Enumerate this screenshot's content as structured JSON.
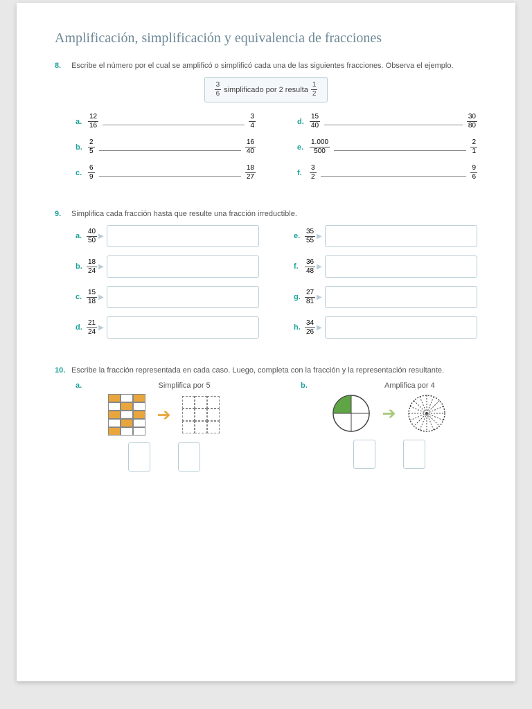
{
  "title": "Amplificación, simplificación y equivalencia de fracciones",
  "q8": {
    "num": "8.",
    "text": "Escribe el número por el cual se amplificó o simplificó cada una de las siguientes fracciones. Observa el ejemplo.",
    "example": {
      "f1": {
        "n": "3",
        "d": "6"
      },
      "mid": "simplificado por 2 resulta",
      "f2": {
        "n": "1",
        "d": "2"
      }
    },
    "left": [
      {
        "l": "a.",
        "f1": {
          "n": "12",
          "d": "16"
        },
        "f2": {
          "n": "3",
          "d": "4"
        }
      },
      {
        "l": "b.",
        "f1": {
          "n": "2",
          "d": "5"
        },
        "f2": {
          "n": "16",
          "d": "40"
        }
      },
      {
        "l": "c.",
        "f1": {
          "n": "6",
          "d": "9"
        },
        "f2": {
          "n": "18",
          "d": "27"
        }
      }
    ],
    "right": [
      {
        "l": "d.",
        "f1": {
          "n": "15",
          "d": "40"
        },
        "f2": {
          "n": "30",
          "d": "80"
        }
      },
      {
        "l": "e.",
        "f1": {
          "n": "1.000",
          "d": "500"
        },
        "f2": {
          "n": "2",
          "d": "1"
        }
      },
      {
        "l": "f.",
        "f1": {
          "n": "3",
          "d": "2"
        },
        "f2": {
          "n": "9",
          "d": "6"
        }
      }
    ]
  },
  "q9": {
    "num": "9.",
    "text": "Simplifica cada fracción hasta que resulte una fracción irreductible.",
    "left": [
      {
        "l": "a.",
        "f": {
          "n": "40",
          "d": "50"
        }
      },
      {
        "l": "b.",
        "f": {
          "n": "18",
          "d": "24"
        }
      },
      {
        "l": "c.",
        "f": {
          "n": "15",
          "d": "18"
        }
      },
      {
        "l": "d.",
        "f": {
          "n": "21",
          "d": "24"
        }
      }
    ],
    "right": [
      {
        "l": "e.",
        "f": {
          "n": "35",
          "d": "55"
        }
      },
      {
        "l": "f.",
        "f": {
          "n": "36",
          "d": "48"
        }
      },
      {
        "l": "g.",
        "f": {
          "n": "27",
          "d": "81"
        }
      },
      {
        "l": "h.",
        "f": {
          "n": "34",
          "d": "26"
        }
      }
    ]
  },
  "q10": {
    "num": "10.",
    "text": "Escribe la fracción representada en cada caso. Luego, completa con la fracción y la representación resultante.",
    "a": {
      "l": "a.",
      "cap": "Simplifica por 5"
    },
    "b": {
      "l": "b.",
      "cap": "Amplifica por 4"
    }
  },
  "colors": {
    "accent": "#1ea39a",
    "heading": "#6e8896",
    "box": "#b8cdd6",
    "orange": "#e8a63d",
    "green": "#5fa545",
    "lightgreen": "#a6c97a"
  }
}
